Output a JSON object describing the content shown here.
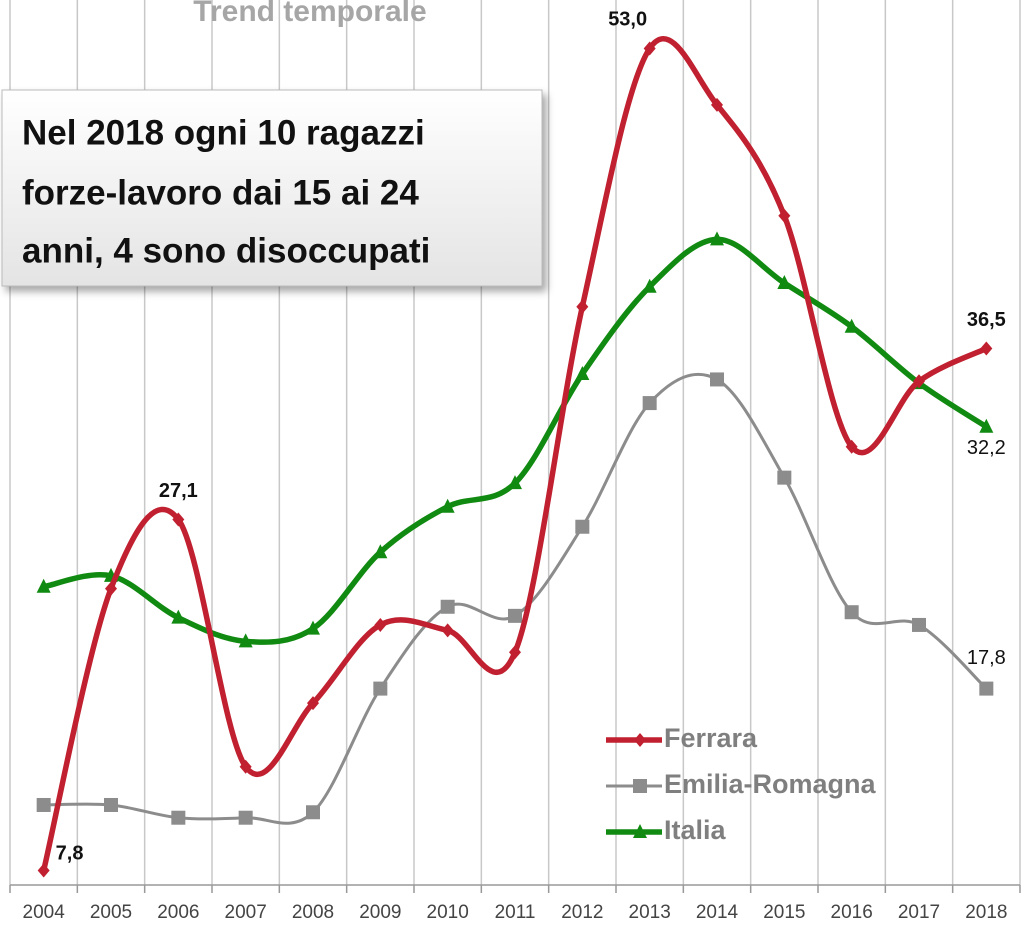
{
  "chart_data": {
    "type": "line",
    "title": "Trend temporale",
    "annotation": [
      "Nel 2018 ogni 10 ragazzi",
      "forze-lavoro dai 15 ai 24",
      "anni, 4 sono disoccupati"
    ],
    "categories": [
      "2004",
      "2005",
      "2006",
      "2007",
      "2008",
      "2009",
      "2010",
      "2011",
      "2012",
      "2013",
      "2014",
      "2015",
      "2016",
      "2017",
      "2018"
    ],
    "series": [
      {
        "name": "Ferrara",
        "color": "#c0202f",
        "marker": "diamond",
        "values": [
          7.8,
          23.3,
          27.1,
          13.5,
          17.0,
          21.3,
          21.0,
          19.8,
          38.8,
          53.0,
          49.9,
          43.8,
          31.1,
          34.7,
          36.5
        ],
        "value_labels": [
          "7,8",
          null,
          "27,1",
          null,
          null,
          null,
          null,
          null,
          null,
          "53,0",
          null,
          null,
          null,
          null,
          "36,5"
        ]
      },
      {
        "name": "Emilia-Romagna",
        "color": "#8c8c8c",
        "marker": "square",
        "values": [
          11.4,
          11.4,
          10.7,
          10.7,
          11.0,
          17.8,
          22.3,
          21.8,
          26.7,
          33.5,
          34.8,
          29.4,
          22.0,
          21.3,
          17.8
        ],
        "value_labels": [
          null,
          null,
          null,
          null,
          null,
          null,
          null,
          null,
          null,
          null,
          null,
          null,
          null,
          null,
          "17,8"
        ]
      },
      {
        "name": "Italia",
        "color": "#118a11",
        "marker": "triangle",
        "values": [
          23.4,
          24.0,
          21.7,
          20.4,
          21.1,
          25.3,
          27.8,
          29.1,
          35.1,
          39.9,
          42.5,
          40.1,
          37.7,
          34.6,
          32.2
        ],
        "value_labels": [
          null,
          null,
          null,
          null,
          null,
          null,
          null,
          null,
          null,
          null,
          null,
          null,
          null,
          null,
          "32,2"
        ]
      }
    ],
    "ylim": [
      7,
      55.5
    ],
    "grid": true
  }
}
